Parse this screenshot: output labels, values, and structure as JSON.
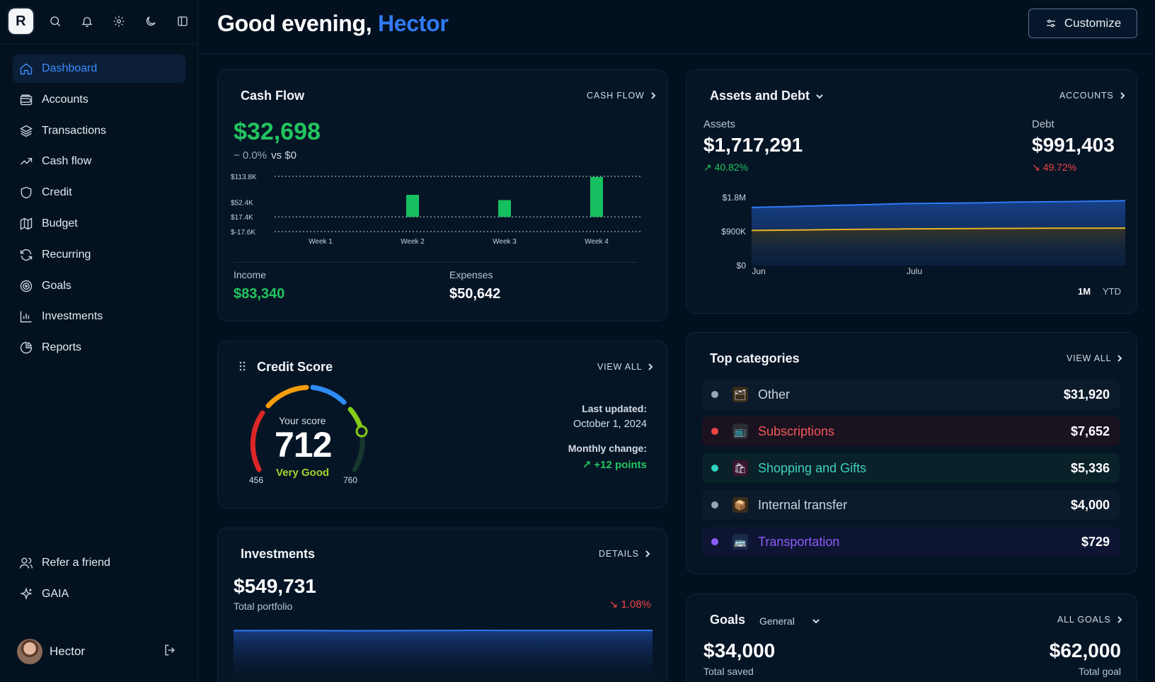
{
  "sidebar": {
    "logo": "R",
    "nav": [
      {
        "label": "Dashboard",
        "icon": "home-icon",
        "active": true
      },
      {
        "label": "Accounts",
        "icon": "wallet-icon"
      },
      {
        "label": "Transactions",
        "icon": "layers-icon"
      },
      {
        "label": "Cash flow",
        "icon": "trend-up-icon"
      },
      {
        "label": "Credit",
        "icon": "shield-icon"
      },
      {
        "label": "Budget",
        "icon": "map-icon"
      },
      {
        "label": "Recurring",
        "icon": "refresh-icon"
      },
      {
        "label": "Goals",
        "icon": "target-icon"
      },
      {
        "label": "Investments",
        "icon": "bar-chart-icon"
      },
      {
        "label": "Reports",
        "icon": "pie-chart-icon"
      }
    ],
    "bottom": [
      {
        "label": "Refer a friend",
        "icon": "users-icon"
      },
      {
        "label": "GAIA",
        "icon": "sparkle-icon"
      }
    ],
    "user": {
      "name": "Hector"
    }
  },
  "header": {
    "greeting": "Good evening,",
    "name": "Hector",
    "customize_label": "Customize"
  },
  "cash_flow": {
    "title": "Cash Flow",
    "link": "CASH FLOW",
    "amount": "$32,698",
    "change": "− 0.0%",
    "vs": "vs $0",
    "income_label": "Income",
    "income": "$83,340",
    "expenses_label": "Expenses",
    "expenses": "$50,642"
  },
  "assets_debt": {
    "title": "Assets and Debt",
    "link": "ACCOUNTS",
    "assets_label": "Assets",
    "assets": "$1,717,291",
    "assets_change": "40.82%",
    "debt_label": "Debt",
    "debt": "$991,403",
    "debt_change": "49.72%",
    "range_1m": "1M",
    "range_ytd": "YTD"
  },
  "credit": {
    "title": "Credit Score",
    "link": "VIEW ALL",
    "your_score": "Your score",
    "score": "712",
    "rating": "Very Good",
    "min": "456",
    "max": "760",
    "last_updated_label": "Last updated:",
    "last_updated": "October 1, 2024",
    "monthly_change_label": "Monthly change:",
    "monthly_change": "+12 points"
  },
  "categories": {
    "title": "Top categories",
    "link": "VIEW ALL",
    "items": [
      {
        "name": "Other",
        "amount": "$31,920",
        "color": "#9aa6b6",
        "icon": "folder-icon",
        "emoji": "🗂"
      },
      {
        "name": "Subscriptions",
        "amount": "$7,652",
        "color": "#ef4444",
        "icon": "tv-icon",
        "emoji": "📺"
      },
      {
        "name": "Shopping and Gifts",
        "amount": "$5,336",
        "color": "#2dd4bf",
        "icon": "shopping-bag-icon",
        "emoji": "🛍"
      },
      {
        "name": "Internal transfer",
        "amount": "$4,000",
        "color": "#9aa6b6",
        "icon": "package-icon",
        "emoji": "📦"
      },
      {
        "name": "Transportation",
        "amount": "$729",
        "color": "#8b5cf6",
        "icon": "bus-icon",
        "emoji": "🚌"
      }
    ]
  },
  "investments": {
    "title": "Investments",
    "link": "DETAILS",
    "amount": "$549,731",
    "sub": "Total portfolio",
    "change": "1.08%"
  },
  "goals": {
    "title": "Goals",
    "filter": "General",
    "link": "ALL GOALS",
    "saved": "$34,000",
    "saved_label": "Total saved",
    "goal": "$62,000",
    "goal_label": "Total goal"
  },
  "chart_data": [
    {
      "type": "bar",
      "categories": [
        "Week 1",
        "Week 2",
        "Week 3",
        "Week 4"
      ],
      "series": [
        {
          "values": [
            0,
            52400,
            40000,
            95000
          ]
        }
      ],
      "y_ticks": [
        "$113.8K",
        "$52.4K",
        "$17.4K",
        "$-17.6K"
      ],
      "y_tick_values": [
        113800,
        52400,
        17400,
        -17600
      ],
      "ylim": [
        -17600,
        113800
      ],
      "color": "#16c060"
    },
    {
      "type": "area",
      "x_ticks": [
        "Jun",
        "Julu"
      ],
      "y_ticks": [
        "$1.8M",
        "$900K",
        "$0"
      ],
      "ylim": [
        0,
        2100000
      ],
      "series": [
        {
          "values": [
            1540000,
            1560000,
            1590000,
            1610000,
            1640000,
            1650000,
            1660000,
            1680000,
            1690000,
            1700000,
            1717291
          ],
          "color": "#2f7bf5"
        },
        {
          "values": [
            930000,
            940000,
            950000,
            960000,
            970000,
            975000,
            980000,
            985000,
            988000,
            990000,
            991403
          ],
          "color": "#e6b325"
        }
      ]
    },
    {
      "type": "area",
      "series": [
        {
          "values": [
            549000,
            549500,
            548800,
            549200,
            549900,
            549600,
            549400,
            549731
          ],
          "color": "#2f7bf5"
        }
      ]
    }
  ]
}
